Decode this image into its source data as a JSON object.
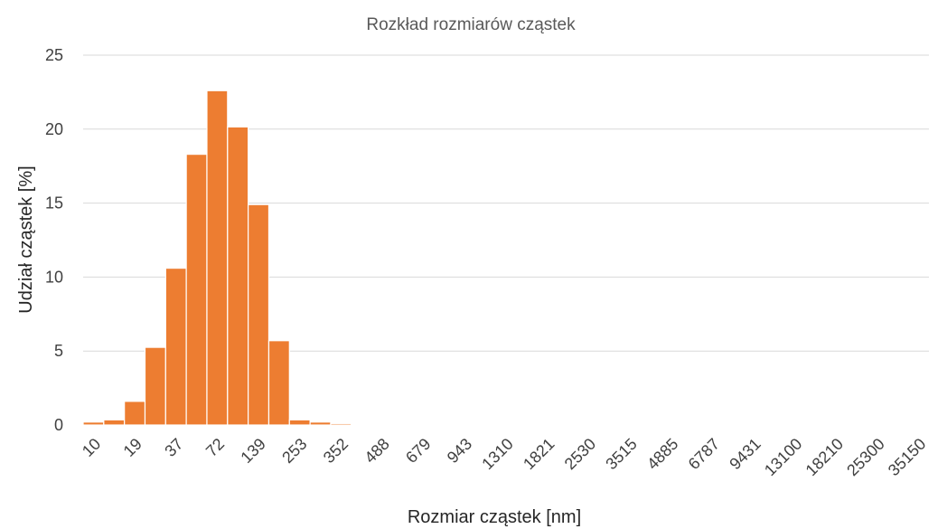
{
  "chart_data": {
    "type": "bar",
    "title": "Rozkład rozmiarów cząstek",
    "xlabel": "Rozmiar cząstek [nm]",
    "ylabel": "Udział cząstek [%]",
    "ylim": [
      0,
      25
    ],
    "yticks": [
      "0",
      "5",
      "10",
      "15",
      "20",
      "25"
    ],
    "grid": true,
    "legend": "none",
    "color": "#ED7D31",
    "xtick_labels": [
      "10",
      "19",
      "37",
      "72",
      "139",
      "253",
      "352",
      "488",
      "679",
      "943",
      "1310",
      "1821",
      "2530",
      "3515",
      "4885",
      "6787",
      "9431",
      "13100",
      "18210",
      "25300",
      "35150"
    ],
    "categories": [
      "10",
      "",
      "19",
      "",
      "37",
      "",
      "72",
      "",
      "139",
      "",
      "253",
      "",
      "352",
      "",
      "488",
      "",
      "679",
      "",
      "943",
      "",
      "1310",
      "",
      "1821",
      "",
      "2530",
      "",
      "3515",
      "",
      "4885",
      "",
      "6787",
      "",
      "9431",
      "",
      "13100",
      "",
      "18210",
      "",
      "25300",
      "",
      "35150"
    ],
    "values": [
      0.2,
      0.35,
      1.6,
      5.25,
      10.6,
      18.3,
      22.6,
      20.15,
      14.9,
      5.7,
      0.35,
      0.2,
      0.1,
      0.05,
      0.05,
      0.05,
      0.05,
      0.05,
      0.05,
      0.05,
      0.05,
      0.05,
      0.05,
      0.05,
      0.05,
      0.05,
      0.05,
      0.05,
      0.05,
      0.05,
      0.05,
      0.05,
      0.05,
      0.05,
      0.05,
      0.05,
      0.05,
      0.05,
      0.05,
      0.05,
      0.05
    ]
  }
}
